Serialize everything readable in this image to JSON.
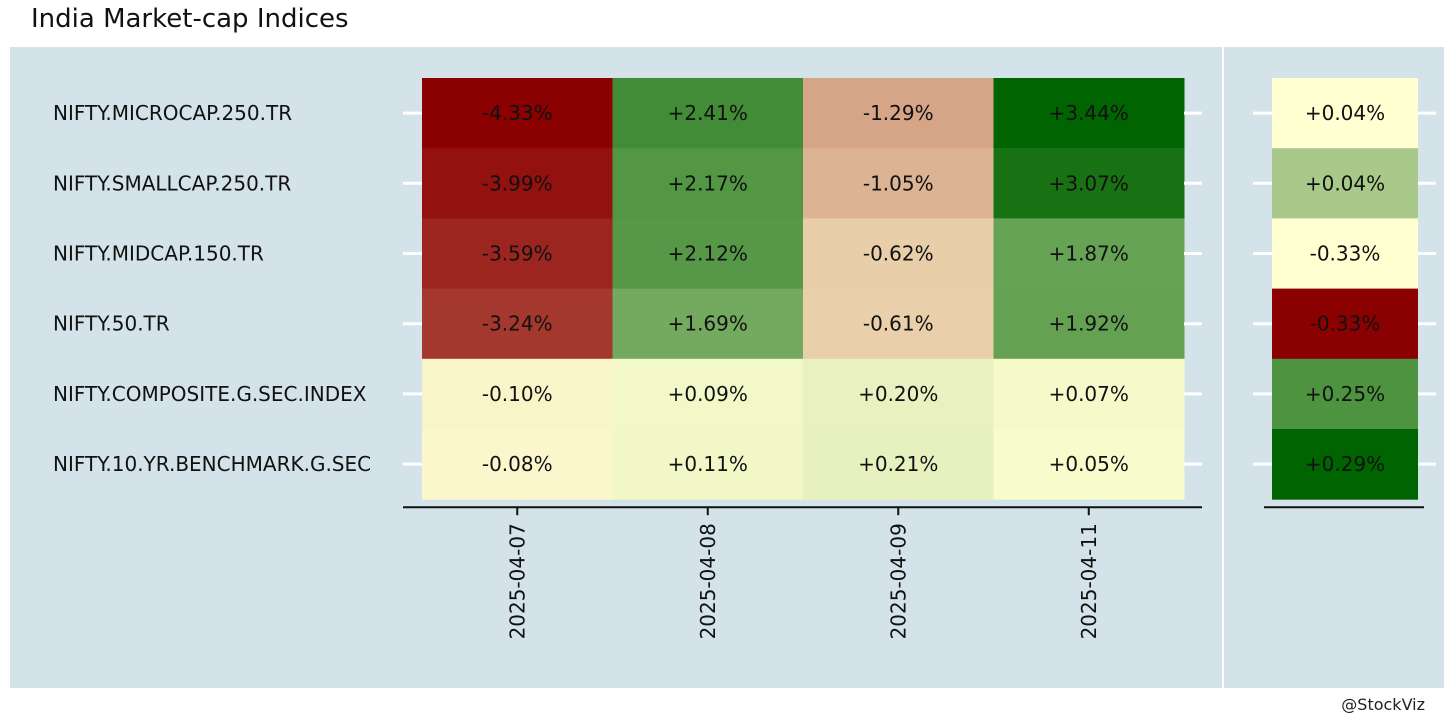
{
  "title": "India Market-cap Indices",
  "credit": "@StockViz",
  "colors": {
    "background": "#ffffff",
    "panel": "#d4e3ea",
    "strong_negative": "#8b0000",
    "neutral": "#ffffd2",
    "strong_positive": "#006400",
    "text": "#111111",
    "axis": "#111111",
    "tick_mark": "#ffffff"
  },
  "chart_data": [
    {
      "type": "heatmap",
      "title": "India Market-cap Indices",
      "rows": [
        "NIFTY.MICROCAP.250.TR",
        "NIFTY.SMALLCAP.250.TR",
        "NIFTY.MIDCAP.150.TR",
        "NIFTY.50.TR",
        "NIFTY.COMPOSITE.G.SEC.INDEX",
        "NIFTY.10.YR.BENCHMARK.G.SEC"
      ],
      "columns": [
        "2025-04-07",
        "2025-04-08",
        "2025-04-09",
        "2025-04-11"
      ],
      "values": [
        [
          -4.33,
          2.41,
          -1.29,
          3.44
        ],
        [
          -3.99,
          2.17,
          -1.05,
          3.07
        ],
        [
          -3.59,
          2.12,
          -0.62,
          1.87
        ],
        [
          -3.24,
          1.69,
          -0.61,
          1.92
        ],
        [
          -0.1,
          0.09,
          0.2,
          0.07
        ],
        [
          -0.08,
          0.11,
          0.21,
          0.05
        ]
      ],
      "labels": [
        [
          "-4.33%",
          "+2.41%",
          "-1.29%",
          "+3.44%"
        ],
        [
          "-3.99%",
          "+2.17%",
          "-1.05%",
          "+3.07%"
        ],
        [
          "-3.59%",
          "+2.12%",
          "-0.62%",
          "+1.87%"
        ],
        [
          "-3.24%",
          "+1.69%",
          "-0.61%",
          "+1.92%"
        ],
        [
          "-0.10%",
          "+0.09%",
          "+0.20%",
          "+0.07%"
        ],
        [
          "-0.08%",
          "+0.11%",
          "+0.21%",
          "+0.05%"
        ]
      ],
      "color_scale": [
        "#8b0000",
        "#ffffd2",
        "#006400"
      ],
      "scale_range": [
        -4.33,
        3.44
      ],
      "grid": false
    },
    {
      "type": "heatmap",
      "rows": [
        "NIFTY.MICROCAP.250.TR",
        "NIFTY.SMALLCAP.250.TR",
        "NIFTY.MIDCAP.150.TR",
        "NIFTY.50.TR",
        "NIFTY.COMPOSITE.G.SEC.INDEX",
        "NIFTY.10.YR.BENCHMARK.G.SEC"
      ],
      "columns": [
        ""
      ],
      "values": [
        0.04,
        0.04,
        -0.33,
        -0.33,
        0.25,
        0.29
      ],
      "labels": [
        "+0.04%",
        "+0.04%",
        "-0.33%",
        "-0.33%",
        "+0.25%",
        "+0.29%"
      ],
      "fill_colors": [
        "#ffffd2",
        "#a8c98a",
        "#ffffd2",
        "#8b0000",
        "#4e9440",
        "#006400"
      ],
      "grid": false
    }
  ]
}
